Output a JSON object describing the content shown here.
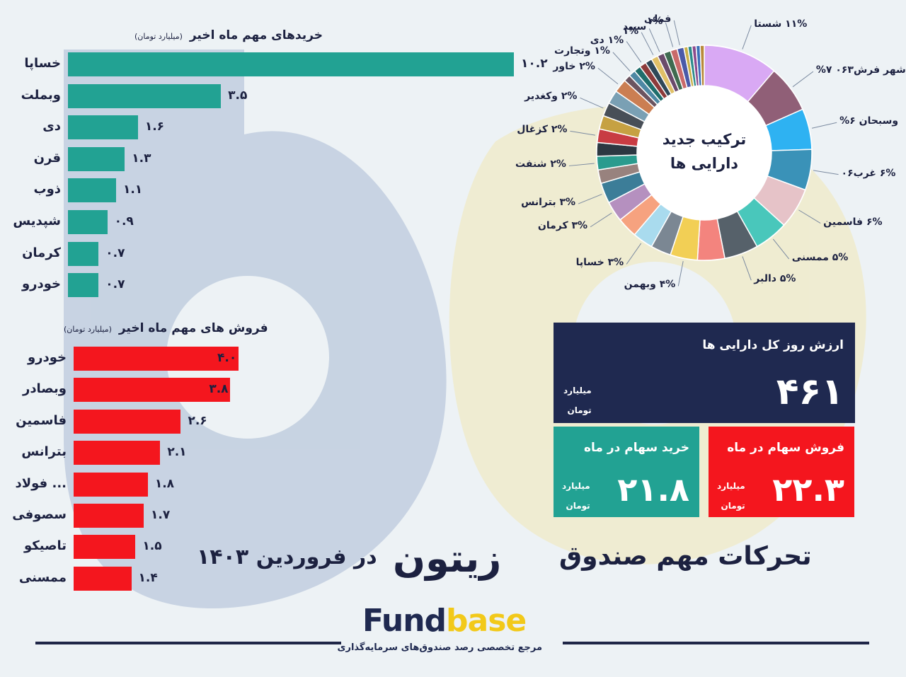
{
  "chart_data": [
    {
      "type": "bar",
      "orientation": "horizontal",
      "title": "خریدهای مهم ماه اخیر",
      "unit": "(میلیارد تومان)",
      "categories": [
        "خساپا",
        "وبملت",
        "دی",
        "قرن",
        "ذوب",
        "شپدیس",
        "کرمان",
        "خودرو"
      ],
      "values": [
        10.2,
        3.5,
        1.6,
        1.3,
        1.1,
        0.9,
        0.7,
        0.7
      ],
      "value_labels": [
        "۱۰.۲",
        "۳.۵",
        "۱.۶",
        "۱.۳",
        "۱.۱",
        "۰.۹",
        "۰.۷",
        "۰.۷"
      ],
      "color": "#22a293"
    },
    {
      "type": "bar",
      "orientation": "horizontal",
      "title": "فروش های مهم ماه اخیر",
      "unit": "(میلیارد تومان)",
      "categories": [
        "خودرو",
        "وبصادر",
        "فاسمین",
        "بترانس",
        "... فولاد",
        "سصوفی",
        "تاصیکو",
        "ممسنی"
      ],
      "values": [
        4.0,
        3.8,
        2.6,
        2.1,
        1.8,
        1.7,
        1.5,
        1.4
      ],
      "value_labels": [
        "۴.۰",
        "۳.۸",
        "۲.۶",
        "۲.۱",
        "۱.۸",
        "۱.۷",
        "۱.۵",
        "۱.۴"
      ],
      "color": "#f4161e"
    },
    {
      "type": "pie",
      "style": "donut",
      "center_text": [
        "ترکیب جدید",
        "دارایی ها"
      ],
      "slices": [
        {
          "label": "۱۱% شستا",
          "value": 11,
          "color": "#d9a9f4"
        },
        {
          "label": "شهر فرش۰۶۳ ۷%",
          "value": 7,
          "color": "#905f77"
        },
        {
          "label": "وسبحان ۶%",
          "value": 6,
          "color": "#2eb2f2"
        },
        {
          "label": "۶% غرب۰۶",
          "value": 6,
          "color": "#3a92b8"
        },
        {
          "label": "۶% فاسمین",
          "value": 6,
          "color": "#e6c3c8"
        },
        {
          "label": "۵% ممسنی",
          "value": 5,
          "color": "#49c7bb"
        },
        {
          "label": "۵% دالبر",
          "value": 5,
          "color": "#56616a"
        },
        {
          "label": "",
          "value": 4,
          "color": "#f3847e"
        },
        {
          "label": "۴% وبهمن",
          "value": 4,
          "color": "#f2cf55"
        },
        {
          "label": "",
          "value": 3,
          "color": "#7b8793"
        },
        {
          "label": "۳% خساپا",
          "value": 3,
          "color": "#a9dbee"
        },
        {
          "label": "",
          "value": 3,
          "color": "#f6a27f"
        },
        {
          "label": "۳% کرمان",
          "value": 3,
          "color": "#b590bf"
        },
        {
          "label": "۳% بترانس",
          "value": 3,
          "color": "#3c7d98"
        },
        {
          "label": "",
          "value": 2,
          "color": "#98827e"
        },
        {
          "label": "۲% شنفت",
          "value": 2,
          "color": "#2a9b8e"
        },
        {
          "label": "",
          "value": 2,
          "color": "#2c3842"
        },
        {
          "label": "۲% کزغال",
          "value": 2,
          "color": "#c83c43"
        },
        {
          "label": "",
          "value": 2,
          "color": "#c6a142"
        },
        {
          "label": "۲% وکغدیر",
          "value": 2,
          "color": "#484f57"
        },
        {
          "label": "",
          "value": 2,
          "color": "#7aa0b4"
        },
        {
          "label": "۲% خاور",
          "value": 2,
          "color": "#cb7e52"
        },
        {
          "label": "",
          "value": 1,
          "color": "#6b5460"
        },
        {
          "label": "۱% وتجارت",
          "value": 1,
          "color": "#4e88a4"
        },
        {
          "label": "",
          "value": 1,
          "color": "#1f6e6c"
        },
        {
          "label": "۱% دی",
          "value": 1,
          "color": "#8d3b3b"
        },
        {
          "label": "",
          "value": 1,
          "color": "#2f4858"
        },
        {
          "label": "۱%",
          "value": 1,
          "color": "#e0c067"
        },
        {
          "label": "سپید",
          "value": 1,
          "color": "#6b4b6b"
        },
        {
          "label": "",
          "value": 1,
          "color": "#3f6b50"
        },
        {
          "label": "۱%",
          "value": 1,
          "color": "#c96a6a"
        },
        {
          "label": "فملی",
          "value": 1,
          "color": "#4a5aa8"
        },
        {
          "label": "",
          "value": 0.6,
          "color": "#c9b04a"
        },
        {
          "label": "",
          "value": 0.6,
          "color": "#2d8c8c"
        },
        {
          "label": "",
          "value": 0.6,
          "color": "#8c4a8c"
        },
        {
          "label": "",
          "value": 0.6,
          "color": "#3a6fb8"
        },
        {
          "label": "",
          "value": 0.6,
          "color": "#b88a3a"
        }
      ]
    }
  ],
  "cards": {
    "total": {
      "title": "ارزش روز کل دارایی ها",
      "value": "۴۶۱",
      "unit_line1": "میلیارد",
      "unit_line2": "تومان",
      "color": "#1f2950"
    },
    "buy": {
      "title": "خرید سهام در ماه",
      "value": "۲۱.۸",
      "unit_line1": "میلیارد",
      "unit_line2": "تومان",
      "color": "#22a293"
    },
    "sell": {
      "title": "فروش سهام در ماه",
      "value": "۲۲.۳",
      "unit_line1": "میلیارد",
      "unit_line2": "تومان",
      "color": "#f4161e"
    }
  },
  "headline": {
    "left": "در فروردین ۱۴۰۳",
    "fund": "زیتون",
    "right": "تحرکات مهم صندوق"
  },
  "brand": {
    "name_a": "Fund",
    "name_b": "base",
    "tagline": "مرجع تخصصی رصد صندوق‌های سرمایه‌گذاری",
    "color_dark": "#1f2950",
    "color_accent": "#f2c919"
  }
}
